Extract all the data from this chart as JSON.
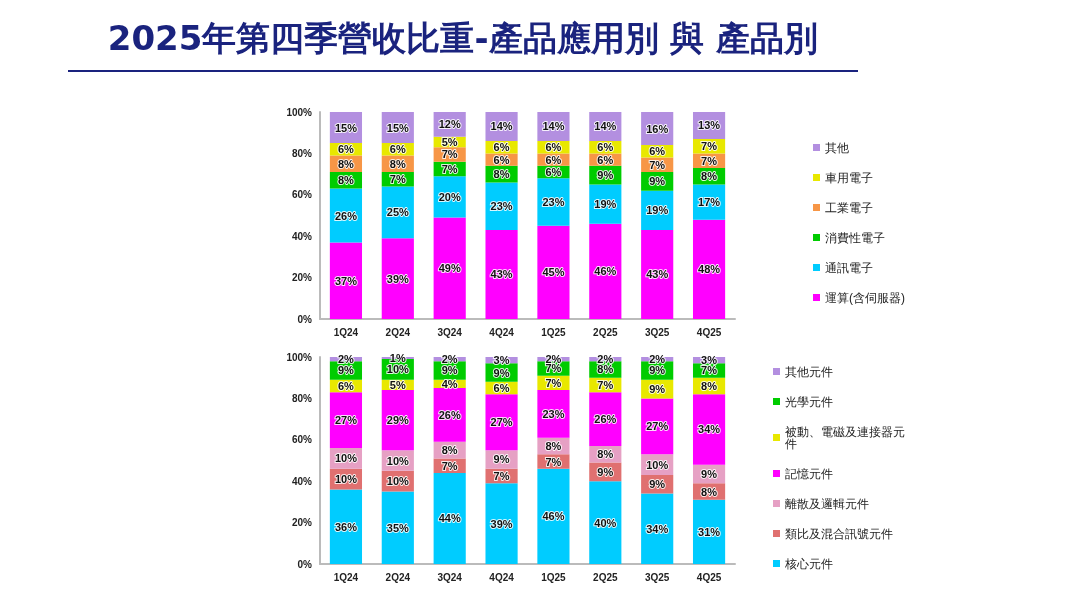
{
  "chart_data": [
    {
      "type": "bar",
      "title": "2025年第四季營收比重-產品應用別 與 產品別",
      "stacked": true,
      "legend": "right",
      "grid": false,
      "categories": [
        "1Q24",
        "2Q24",
        "3Q24",
        "4Q24",
        "1Q25",
        "2Q25",
        "3Q25",
        "4Q25"
      ],
      "ylim": [
        0,
        100
      ],
      "yticks": [
        {
          "value": 0,
          "label": "0%"
        },
        {
          "value": 20,
          "label": "20%"
        },
        {
          "value": 40,
          "label": "40%"
        },
        {
          "value": 60,
          "label": "60%"
        },
        {
          "value": 80,
          "label": "80%"
        },
        {
          "value": 100,
          "label": "100%"
        }
      ],
      "series": [
        {
          "name": "運算(含伺服器)",
          "color": "#ff00ff",
          "values": [
            37,
            39,
            49,
            43,
            45,
            46,
            43,
            48
          ],
          "value_labels": [
            "37%",
            "39%",
            "49%",
            "43%",
            "45%",
            "46%",
            "43%",
            "48%"
          ]
        },
        {
          "name": "通訊電子",
          "color": "#00ccff",
          "values": [
            26,
            25,
            20,
            23,
            23,
            19,
            19,
            17
          ],
          "value_labels": [
            "26%",
            "25%",
            "20%",
            "23%",
            "23%",
            "19%",
            "19%",
            "17%"
          ]
        },
        {
          "name": "消費性電子",
          "color": "#00cc00",
          "values": [
            8,
            7,
            7,
            8,
            6,
            9,
            9,
            8
          ],
          "value_labels": [
            "8%",
            "7%",
            "7%",
            "8%",
            "6%",
            "9%",
            "9%",
            "8%"
          ]
        },
        {
          "name": "工業電子",
          "color": "#f79646",
          "values": [
            8,
            8,
            7,
            6,
            6,
            6,
            7,
            7
          ],
          "value_labels": [
            "8%",
            "8%",
            "7%",
            "6%",
            "6%",
            "6%",
            "7%",
            "7%"
          ]
        },
        {
          "name": "車用電子",
          "color": "#e8e800",
          "values": [
            6,
            6,
            5,
            6,
            6,
            6,
            6,
            7
          ],
          "value_labels": [
            "6%",
            "6%",
            "5%",
            "6%",
            "6%",
            "6%",
            "6%",
            "7%"
          ]
        },
        {
          "name": "其他",
          "color": "#b38fe0",
          "values": [
            15,
            15,
            12,
            14,
            14,
            14,
            16,
            13
          ],
          "value_labels": [
            "15%",
            "15%",
            "12%",
            "14%",
            "14%",
            "14%",
            "16%",
            "13%"
          ]
        }
      ]
    },
    {
      "type": "bar",
      "stacked": true,
      "legend": "right",
      "grid": false,
      "categories": [
        "1Q24",
        "2Q24",
        "3Q24",
        "4Q24",
        "1Q25",
        "2Q25",
        "3Q25",
        "4Q25"
      ],
      "ylim": [
        0,
        100
      ],
      "yticks": [
        {
          "value": 0,
          "label": "0%"
        },
        {
          "value": 20,
          "label": "20%"
        },
        {
          "value": 40,
          "label": "40%"
        },
        {
          "value": 60,
          "label": "60%"
        },
        {
          "value": 80,
          "label": "80%"
        },
        {
          "value": 100,
          "label": "100%"
        }
      ],
      "series": [
        {
          "name": "核心元件",
          "color": "#00ccff",
          "values": [
            36,
            35,
            44,
            39,
            46,
            40,
            34,
            31
          ],
          "value_labels": [
            "36%",
            "35%",
            "44%",
            "39%",
            "46%",
            "40%",
            "34%",
            "31%"
          ]
        },
        {
          "name": "類比及混合訊號元件",
          "color": "#e07070",
          "values": [
            10,
            10,
            7,
            7,
            7,
            9,
            9,
            8
          ],
          "value_labels": [
            "10%",
            "10%",
            "7%",
            "7%",
            "7%",
            "9%",
            "9%",
            "8%"
          ]
        },
        {
          "name": "離散及邏輯元件",
          "color": "#e6a0c4",
          "values": [
            10,
            10,
            8,
            9,
            8,
            8,
            10,
            9
          ],
          "value_labels": [
            "10%",
            "10%",
            "8%",
            "9%",
            "8%",
            "8%",
            "10%",
            "9%"
          ]
        },
        {
          "name": "記憶元件",
          "color": "#ff00ff",
          "values": [
            27,
            29,
            26,
            27,
            23,
            26,
            27,
            34
          ],
          "value_labels": [
            "27%",
            "29%",
            "26%",
            "27%",
            "23%",
            "26%",
            "27%",
            "34%"
          ]
        },
        {
          "name": "被動、電磁及連接器元件",
          "color": "#e8e800",
          "values": [
            6,
            5,
            4,
            6,
            7,
            7,
            9,
            8
          ],
          "value_labels": [
            "6%",
            "5%",
            "4%",
            "6%",
            "7%",
            "7%",
            "9%",
            "8%"
          ]
        },
        {
          "name": "光學元件",
          "color": "#00cc00",
          "values": [
            9,
            10,
            9,
            9,
            7,
            8,
            9,
            7
          ],
          "value_labels": [
            "9%",
            "10%",
            "9%",
            "9%",
            "7%",
            "8%",
            "9%",
            "7%"
          ]
        },
        {
          "name": "其他元件",
          "color": "#b38fe0",
          "values": [
            2,
            1,
            2,
            3,
            2,
            2,
            2,
            3
          ],
          "value_labels": [
            "2%",
            "1%",
            "2%",
            "3%",
            "2%",
            "2%",
            "2%",
            "3%"
          ]
        }
      ]
    }
  ]
}
